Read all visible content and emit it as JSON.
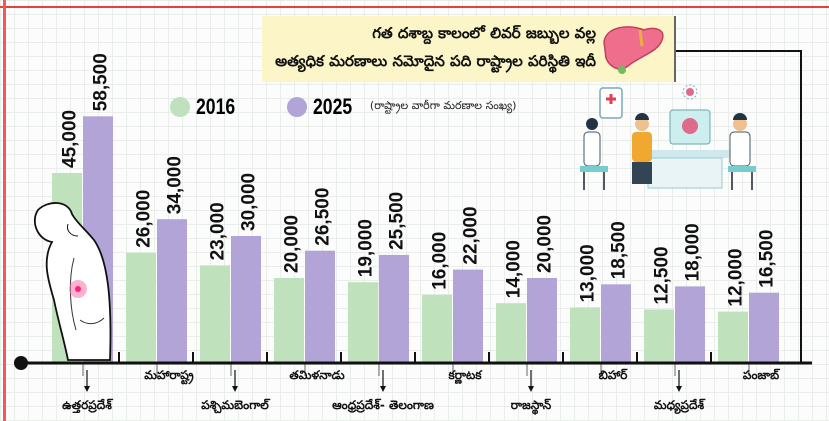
{
  "title": {
    "line1": "గత దశాబ్ద కాలంలో లివర్ జబ్బుల వల్ల",
    "line2": "అత్యధిక మరణాలు నమోదైన పది రాష్ట్రాల పరిస్థితి ఇదీ"
  },
  "legend_note": "(రాష్ట్రాల వారీగా మరణాల సంఖ్య)",
  "colors": {
    "2016": "#bfe1bb",
    "2025": "#b2a4d6",
    "accent": "#e84040"
  },
  "chart_data": {
    "type": "bar",
    "title": "గత దశాబ్ద కాలంలో లివర్ జబ్బుల వల్ల అత్యధిక మరణాలు నమోదైన పది రాష్ట్రాల పరిస్థితి ఇదీ",
    "ylabel": "రాష్ట్రాల వారీగా మరణాల సంఖ్య",
    "ylim": [
      0,
      60000
    ],
    "grid": true,
    "legend_placement": "top-left",
    "categories": [
      "ఉత్తరప్రదేశ్",
      "మహారాష్ట్ర",
      "పశ్చిమబెంగాల్",
      "తమిళనాడు",
      "ఆంధ్రప్రదేశ్- తెలంగాణ",
      "కర్ణాటక",
      "రాజస్థాన్",
      "బిహార్",
      "మధ్యప్రదేశ్",
      "పంజాబ్"
    ],
    "series": [
      {
        "name": "2016",
        "values": [
          45000,
          26000,
          23000,
          20000,
          19000,
          16000,
          14000,
          13000,
          12500,
          12000
        ],
        "labels": [
          "45,000",
          "26,000",
          "23,000",
          "20,000",
          "19,000",
          "16,000",
          "14,000",
          "13,000",
          "12,500",
          "12,000"
        ]
      },
      {
        "name": "2025",
        "values": [
          58500,
          34000,
          30000,
          26500,
          25500,
          22000,
          20000,
          18500,
          18000,
          16500
        ],
        "labels": [
          "58,500",
          "34,000",
          "30,000",
          "26,500",
          "25,500",
          "22,000",
          "20,000",
          "18,500",
          "18,000",
          "16,500"
        ]
      }
    ]
  }
}
